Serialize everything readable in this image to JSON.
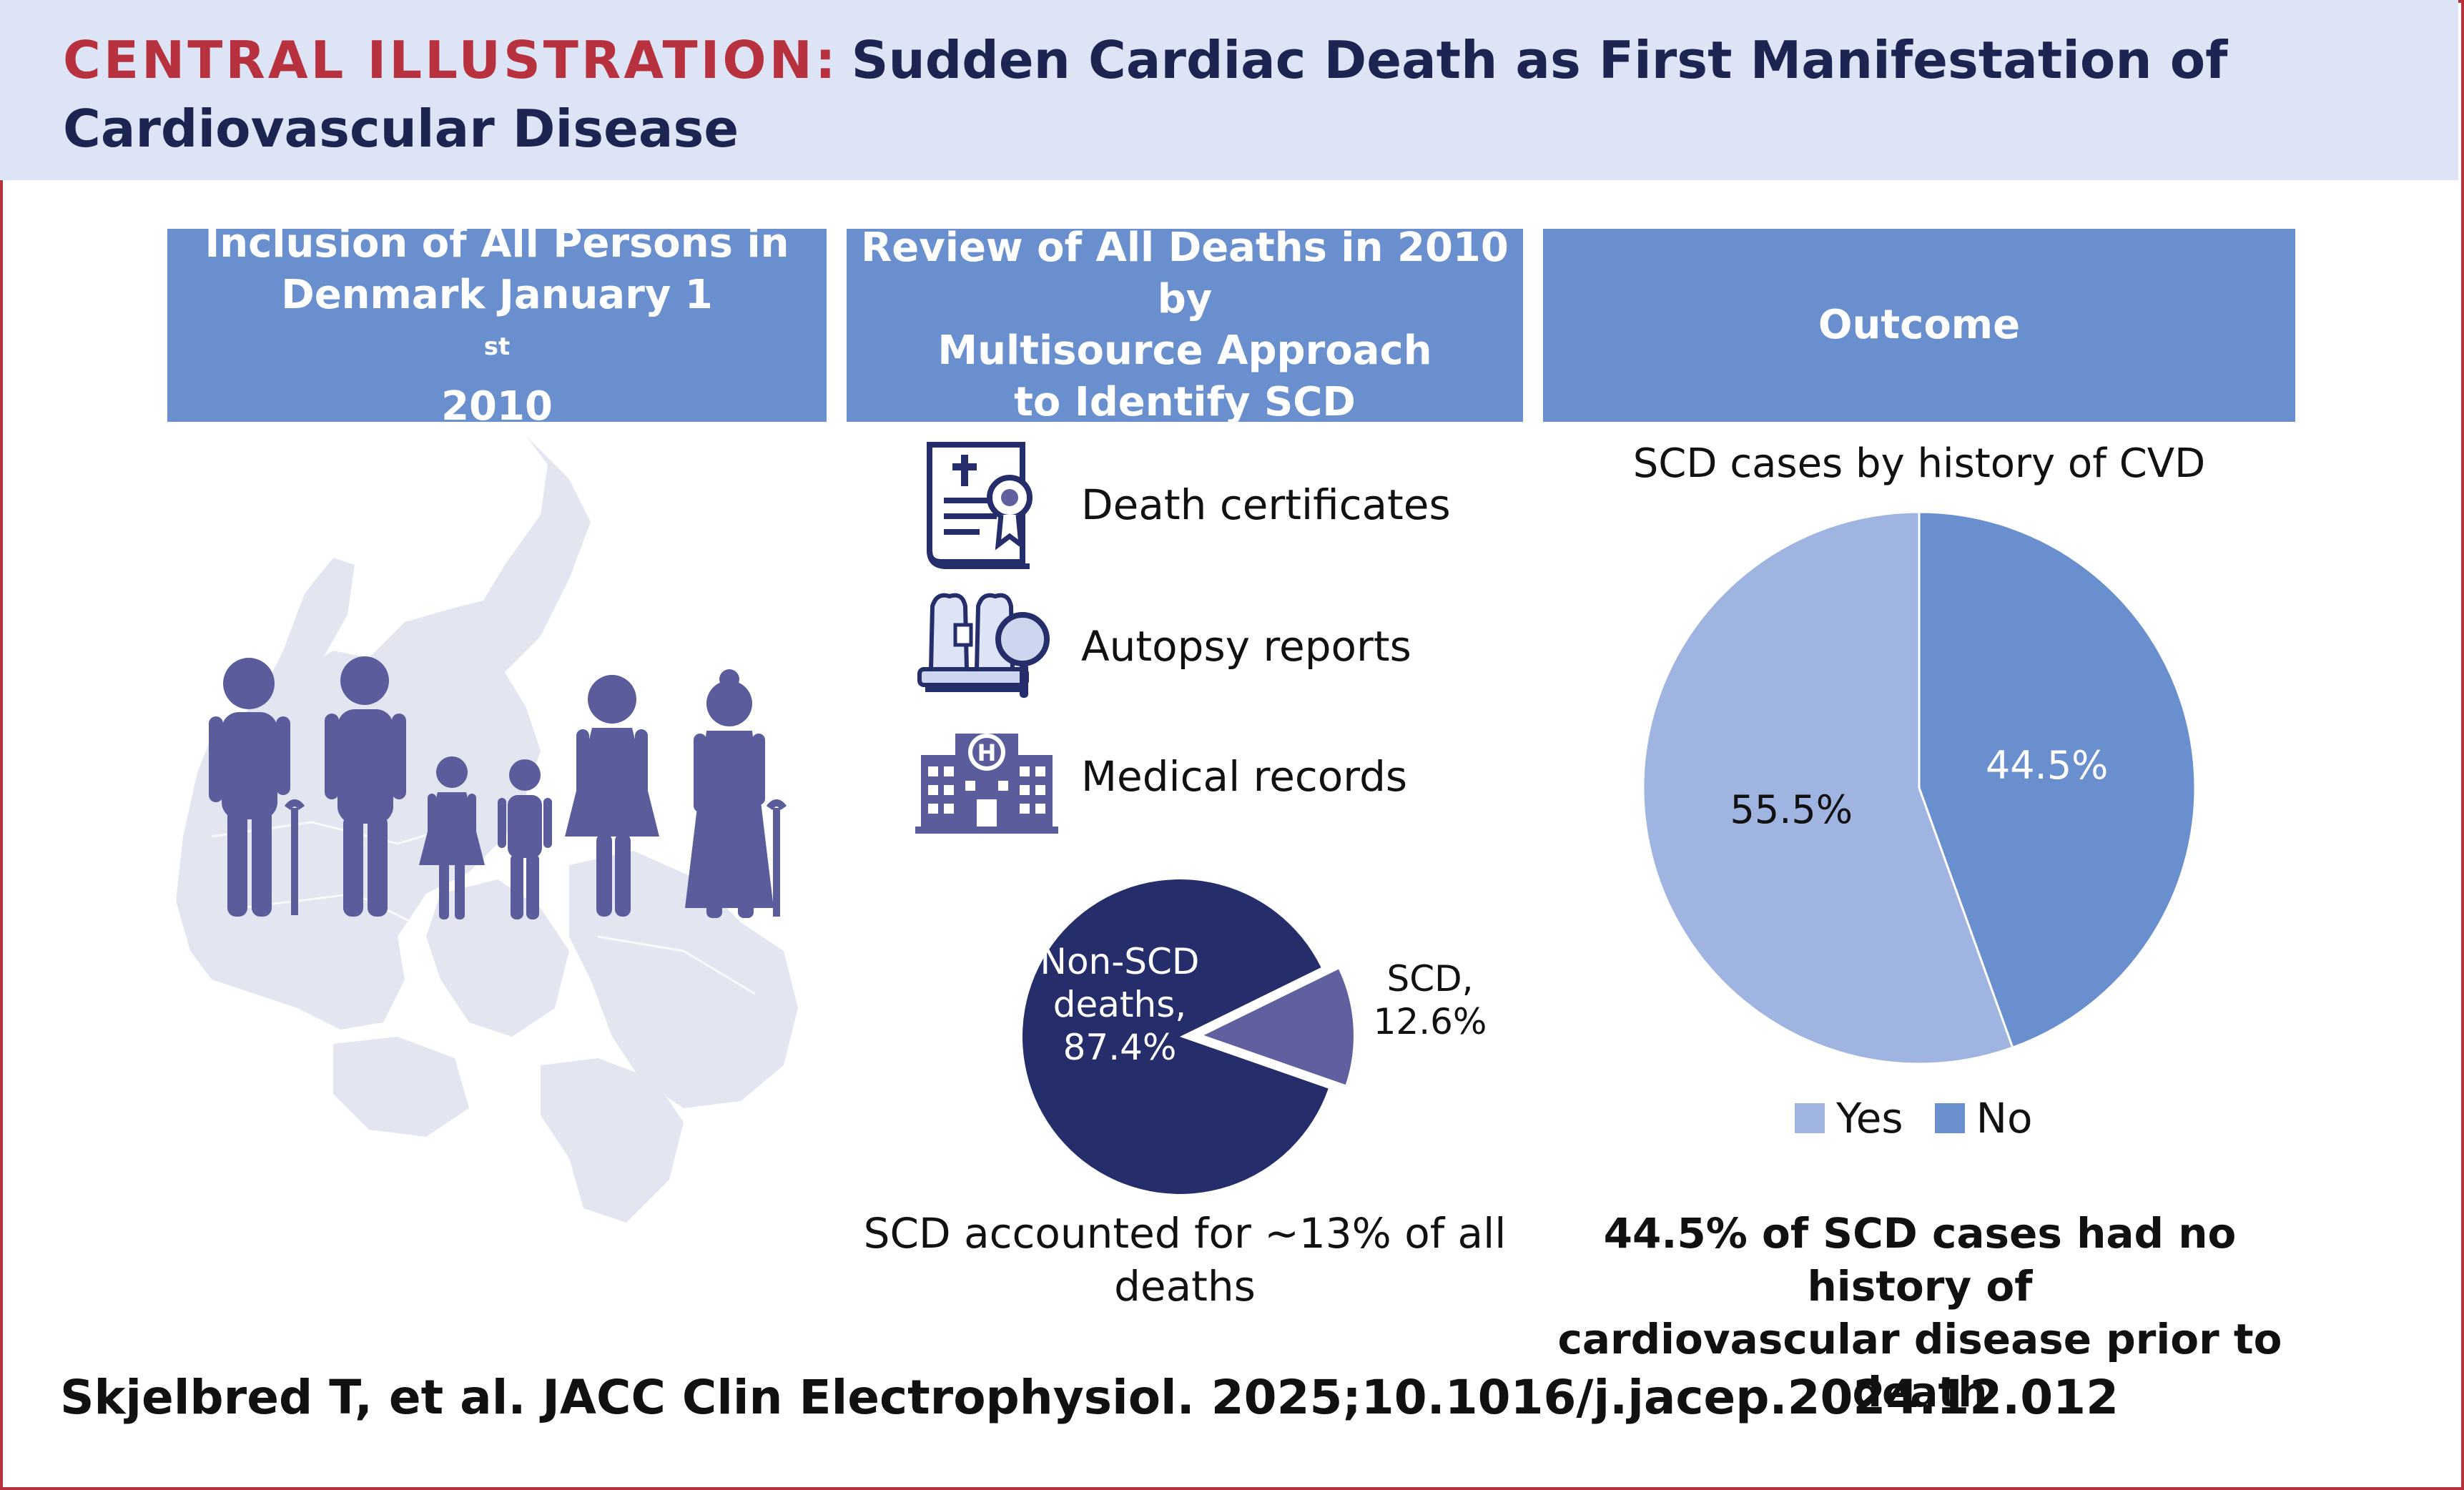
{
  "header": {
    "kicker": "CENTRAL ILLUSTRATION:",
    "title_line1": "Sudden Cardiac Death as First Manifestation of",
    "title_line2": "Cardiovascular Disease"
  },
  "columns": {
    "inclusion": {
      "line1": "Inclusion of All Persons in",
      "line2_pre": "Denmark January 1",
      "line2_sup": "st",
      "line2_post": " 2010"
    },
    "review": {
      "line1": "Review of All Deaths in 2010 by",
      "line2": "Multisource Approach",
      "line3": "to Identify SCD"
    },
    "outcome": {
      "label": "Outcome"
    }
  },
  "sources": [
    {
      "label": "Death certificates",
      "icon": "death-certificate-icon"
    },
    {
      "label": "Autopsy reports",
      "icon": "autopsy-icon"
    },
    {
      "label": "Medical records",
      "icon": "hospital-icon"
    }
  ],
  "deaths_caption": {
    "line1": "SCD accounted for ~13% of all",
    "line2": "deaths"
  },
  "outcome_caption": {
    "line1": "44.5% of SCD cases had no history of",
    "line2": "cardiovascular disease prior to death"
  },
  "pie_title": "SCD cases by history of CVD",
  "legend": {
    "yes": "Yes",
    "no": "No"
  },
  "citation": "Skjelbred T, et al. JACC Clin Electrophysiol. 2025;10.1016/j.jacep.2024.12.012",
  "colors": {
    "accent_red": "#b8313f",
    "navy": "#1c2552",
    "header_bg": "#dde4f5",
    "column_blue": "#6a8fcf",
    "figure_purple": "#5b5c9b",
    "map_gray": "#e3e6f1",
    "nonscd": "#262d6b",
    "scd": "#6060a0",
    "yes": "#9fb4e0",
    "no": "#6a8fcf"
  },
  "chart_data": [
    {
      "type": "pie",
      "title": "",
      "slices": [
        {
          "name": "Non-SCD deaths",
          "label_lines": [
            "Non-SCD",
            "deaths,",
            "87.4%"
          ],
          "value": 87.4,
          "color": "#262d6b"
        },
        {
          "name": "SCD",
          "label_lines": [
            "SCD,",
            "12.6%"
          ],
          "value": 12.6,
          "color": "#6060a0",
          "exploded": true
        }
      ]
    },
    {
      "type": "pie",
      "title": "SCD cases by history of CVD",
      "slices": [
        {
          "name": "No",
          "value": 44.5,
          "label": "44.5%",
          "color": "#6a8fcf"
        },
        {
          "name": "Yes",
          "value": 55.5,
          "label": "55.5%",
          "color": "#9fb4e0"
        }
      ],
      "legend": [
        "Yes",
        "No"
      ],
      "legend_position": "bottom"
    }
  ]
}
